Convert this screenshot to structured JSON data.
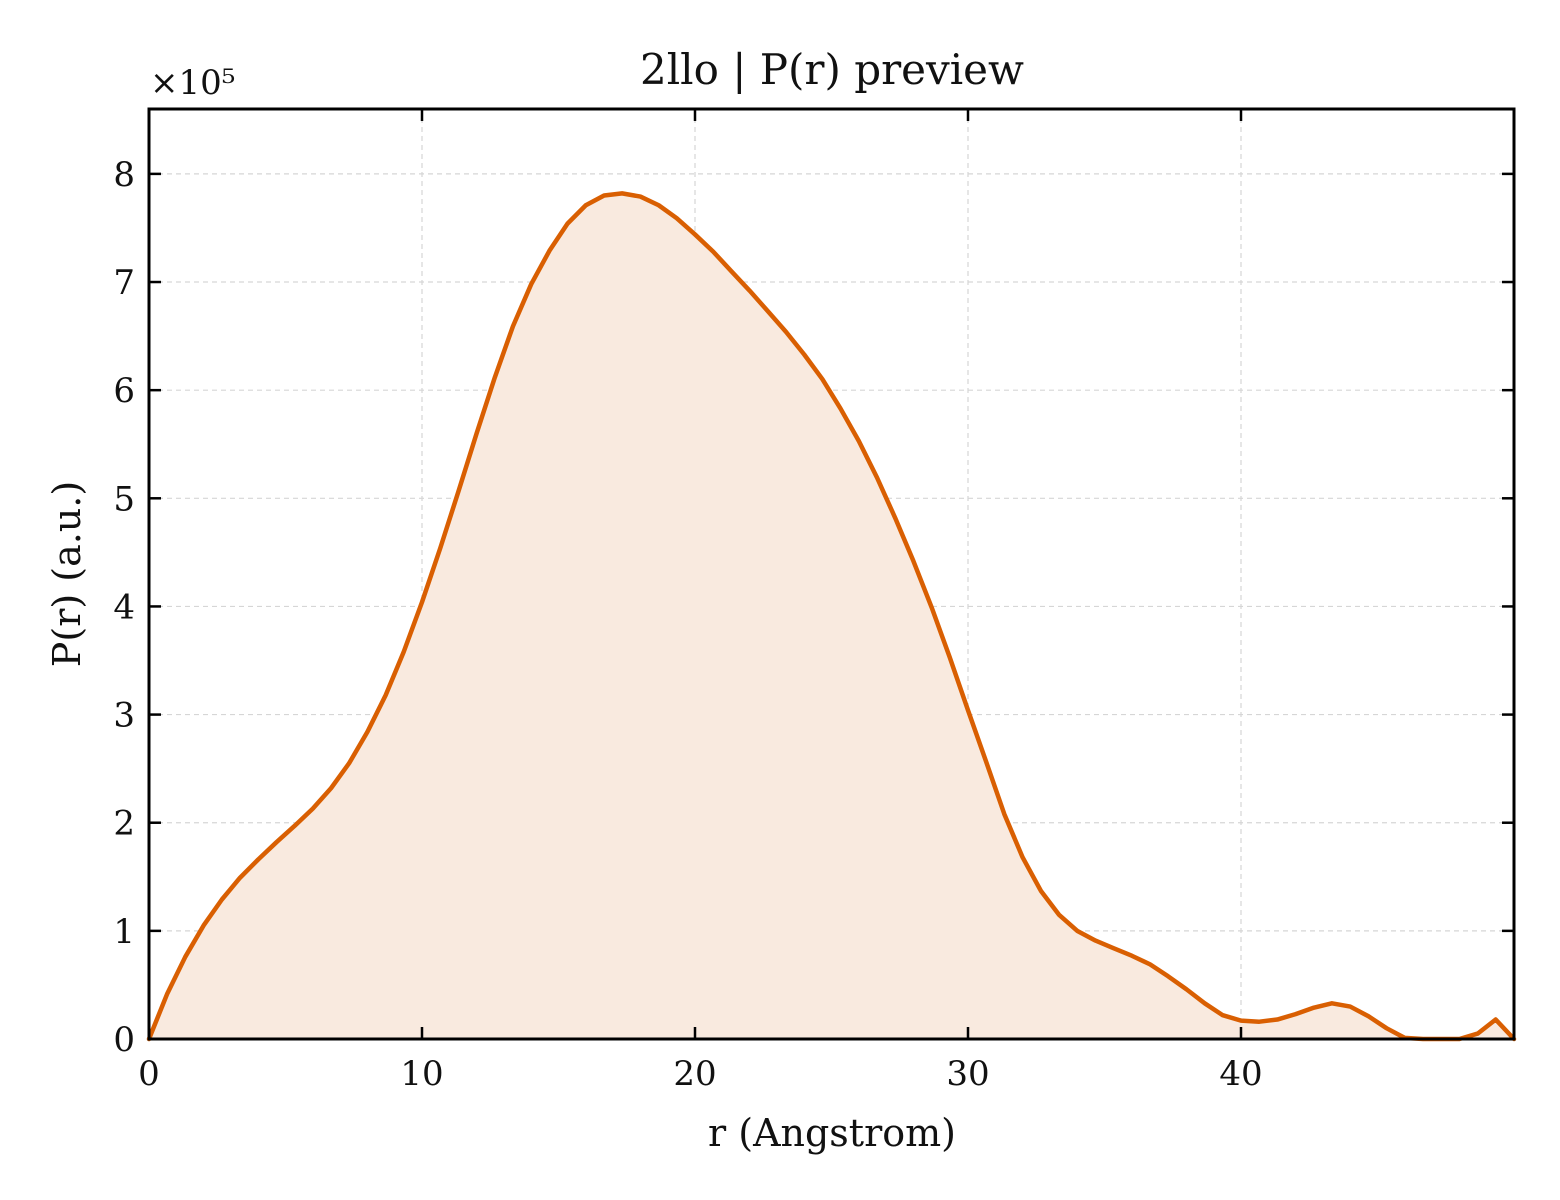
{
  "chart_data": {
    "type": "area",
    "title": "2llo | P(r) preview",
    "xlabel": "r (Angstrom)",
    "ylabel": "P(r) (a.u.)",
    "y_multiplier": "×10⁵",
    "xlim": [
      0,
      50
    ],
    "ylim": [
      0,
      8.6
    ],
    "x_ticks": [
      0,
      10,
      20,
      30,
      40
    ],
    "y_ticks": [
      0,
      1,
      2,
      3,
      4,
      5,
      6,
      7,
      8
    ],
    "grid": true,
    "line_color": "#d95f02",
    "fill_color": "#f9eadf",
    "series": [
      {
        "x": [
          0,
          0.67,
          1.33,
          2,
          2.67,
          3.33,
          4,
          4.67,
          5.33,
          6,
          6.67,
          7.33,
          8,
          8.67,
          9.33,
          10,
          10.67,
          11.33,
          12,
          12.67,
          13.33,
          14,
          14.67,
          15.33,
          16,
          16.67,
          17.33,
          18,
          18.67,
          19.33,
          20,
          20.67,
          21.33,
          22,
          22.67,
          23.33,
          24,
          24.67,
          25.33,
          26,
          26.67,
          27.33,
          28,
          28.67,
          29.33,
          30,
          30.67,
          31.33,
          32,
          32.67,
          33.33,
          34,
          34.67,
          35.33,
          36,
          36.67,
          37.33,
          38,
          38.67,
          39.33,
          40,
          40.67,
          41.33,
          42,
          42.67,
          43.33,
          44,
          44.67,
          45.33,
          46,
          46.67,
          47.33,
          48,
          48.67,
          49.33,
          50
        ],
        "y": [
          0,
          0.42,
          0.76,
          1.05,
          1.29,
          1.49,
          1.66,
          1.82,
          1.97,
          2.13,
          2.32,
          2.55,
          2.84,
          3.18,
          3.58,
          4.04,
          4.54,
          5.06,
          5.6,
          6.12,
          6.59,
          6.98,
          7.29,
          7.54,
          7.71,
          7.8,
          7.82,
          7.79,
          7.71,
          7.59,
          7.44,
          7.28,
          7.1,
          6.92,
          6.73,
          6.54,
          6.33,
          6.1,
          5.83,
          5.53,
          5.19,
          4.82,
          4.42,
          3.99,
          3.53,
          3.04,
          2.56,
          2.08,
          1.68,
          1.37,
          1.15,
          1.0,
          0.91,
          0.84,
          0.77,
          0.69,
          0.58,
          0.46,
          0.33,
          0.22,
          0.17,
          0.16,
          0.18,
          0.23,
          0.29,
          0.33,
          0.3,
          0.21,
          0.1,
          0.01,
          0.0,
          0.0,
          0.0,
          0.05,
          0.18,
          0.0
        ]
      }
    ]
  }
}
